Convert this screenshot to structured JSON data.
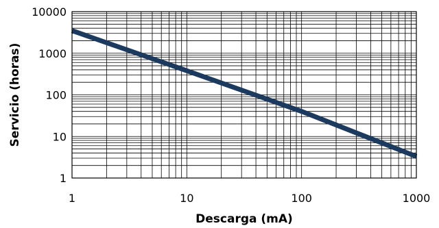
{
  "chart_data": {
    "type": "line",
    "title": "",
    "xlabel": "Descarga (mA)",
    "ylabel": "Servicio (horas)",
    "x_scale": "log",
    "y_scale": "log",
    "xlim": [
      1,
      1000
    ],
    "ylim": [
      1,
      10000
    ],
    "x_tick_labels": [
      "1",
      "10",
      "100",
      "1000"
    ],
    "y_tick_labels": [
      "10000",
      "1000",
      "100",
      "10",
      "1"
    ],
    "grid": true,
    "legend": "none",
    "series": [
      {
        "color": "#1c3a5e",
        "x": [
          1,
          10,
          100,
          1000
        ],
        "y": [
          3500,
          380,
          40,
          3.3
        ]
      }
    ]
  }
}
